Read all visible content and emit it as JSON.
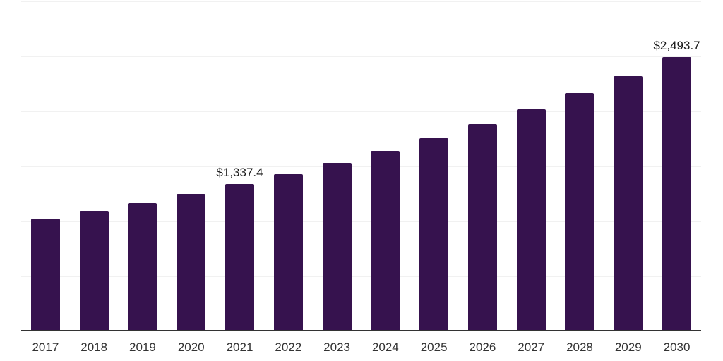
{
  "chart_data": {
    "type": "bar",
    "title": "",
    "xlabel": "",
    "ylabel": "",
    "categories": [
      "2017",
      "2018",
      "2019",
      "2020",
      "2021",
      "2022",
      "2023",
      "2024",
      "2025",
      "2026",
      "2027",
      "2028",
      "2029",
      "2030"
    ],
    "values": [
      1025.6,
      1096.2,
      1166.7,
      1250.0,
      1337.4,
      1429.5,
      1532.1,
      1641.0,
      1756.4,
      1884.6,
      2019.2,
      2166.7,
      2320.5,
      2493.7
    ],
    "bar_labels": [
      "",
      "",
      "",
      "",
      "$1,337.4",
      "",
      "",
      "",
      "",
      "",
      "",
      "",
      "",
      "$2,493.7"
    ],
    "ylim": [
      0,
      3000
    ],
    "gridline_step": 500,
    "grid": true,
    "legend_position": "none",
    "y_axis_labels_visible": false,
    "colors": {
      "bar": "#36124E",
      "gridline": "#F1F1F1",
      "axis_line": "#333333",
      "tick_label": "#333333",
      "value_label": "#1A1A1A",
      "background": "#FFFFFF"
    }
  }
}
